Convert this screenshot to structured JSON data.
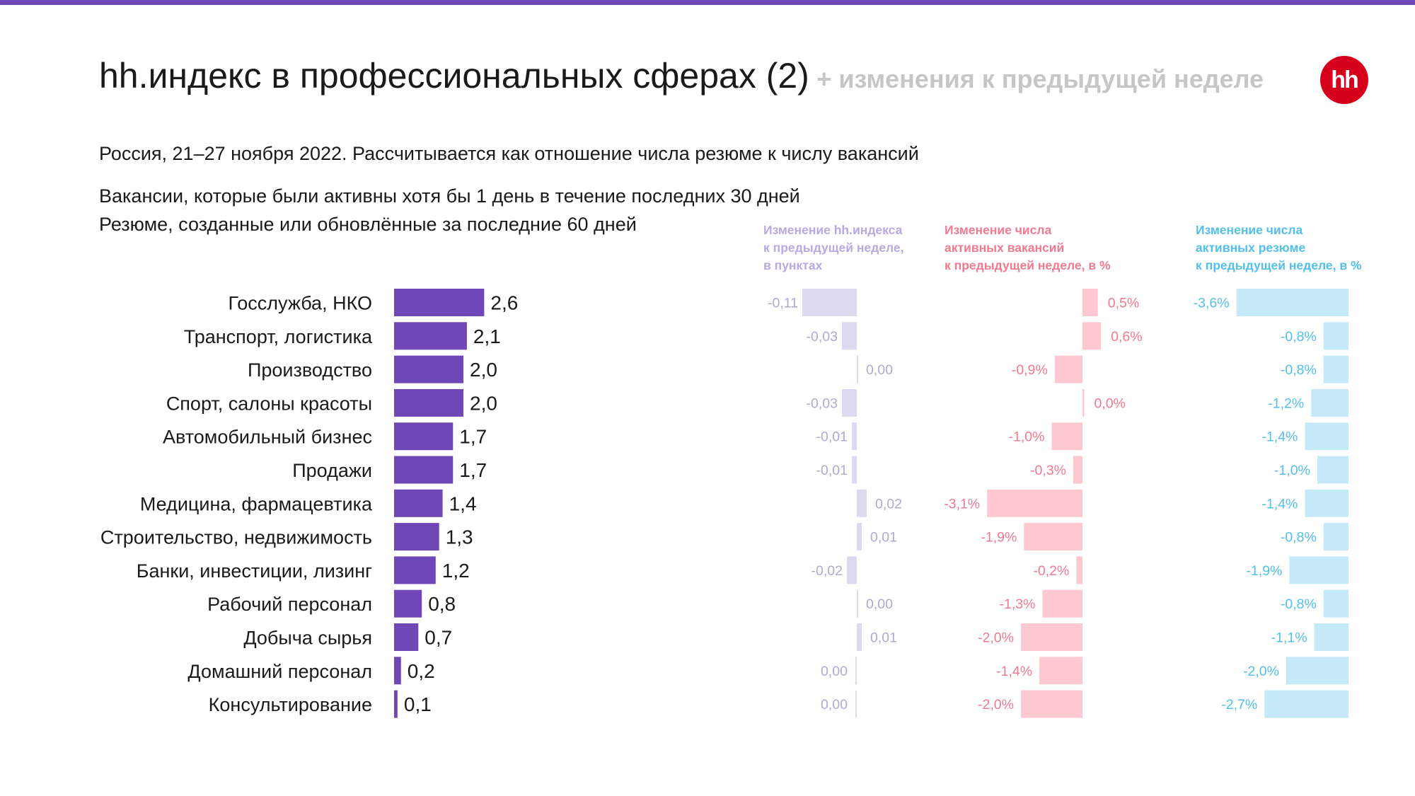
{
  "header": {
    "title": "hh.индекс в профессиональных сферах (2)",
    "subtitle": "+ изменения к предыдущей неделе",
    "logo_text": "hh"
  },
  "description": {
    "line1": "Россия, 21–27 ноября 2022. Рассчитывается как отношение числа резюме к числу вакансий",
    "line2": "Вакансии, которые были активны хотя бы 1 день в течение последних 30 дней",
    "line3": "Резюме, созданные или обновлённые за последние 60 дней"
  },
  "columns": {
    "index_change": "Изменение hh.индекса\nк предыдущей неделе,\nв пунктах",
    "vacancies_change": "Изменение числа\nактивных вакансий\nк предыдущей неделе, в %",
    "resumes_change": "Изменение числа\nактивных резюме\nк предыдущей неделе, в %"
  },
  "colors": {
    "accent_stripe": "#7047b6",
    "main_bar": "#7047b6",
    "logo_red": "#d6001c",
    "index_bar": "#ddd9ee",
    "index_text": "#b1a9ce",
    "index_header": "#b9a8e2",
    "vacancies_bar": "#fec8d0",
    "vacancies_text": "#f07a8f",
    "resumes_bar": "#c6e9fa",
    "resumes_text": "#52c0ea"
  },
  "chart_data": [
    {
      "type": "bar",
      "orientation": "horizontal",
      "categories": [
        "Госслужба, НКО",
        "Транспорт, логистика",
        "Производство",
        "Спорт, салоны красоты",
        "Автомобильный бизнес",
        "Продажи",
        "Медицина, фармацевтика",
        "Строительство, недвижимость",
        "Банки, инвестиции, лизинг",
        "Рабочий персонал",
        "Добыча сырья",
        "Домашний персонал",
        "Консультирование"
      ],
      "values": [
        2.6,
        2.1,
        2.0,
        2.0,
        1.7,
        1.7,
        1.4,
        1.3,
        1.2,
        0.8,
        0.7,
        0.2,
        0.1
      ],
      "labels": [
        "2,6",
        "2,1",
        "2,0",
        "2,0",
        "1,7",
        "1,7",
        "1,4",
        "1,3",
        "1,2",
        "0,8",
        "0,7",
        "0,2",
        "0,1"
      ]
    },
    {
      "type": "bar",
      "orientation": "horizontal",
      "values": [
        -0.11,
        -0.03,
        0.0,
        -0.03,
        -0.01,
        -0.01,
        0.02,
        0.01,
        -0.02,
        0.0,
        0.01,
        0.0,
        0.0
      ],
      "labels": [
        "-0,11",
        "-0,03",
        "0,00",
        "-0,03",
        "-0,01",
        "-0,01",
        "0,02",
        "0,01",
        "-0,02",
        "0,00",
        "0,01",
        "0,00",
        "0,00"
      ]
    },
    {
      "type": "bar",
      "orientation": "horizontal",
      "values": [
        0.5,
        0.6,
        -0.9,
        0.0,
        -1.0,
        -0.3,
        -3.1,
        -1.9,
        -0.2,
        -1.3,
        -2.0,
        -1.4,
        -2.0
      ],
      "labels": [
        "0,5%",
        "0,6%",
        "-0,9%",
        "0,0%",
        "-1,0%",
        "-0,3%",
        "-3,1%",
        "-1,9%",
        "-0,2%",
        "-1,3%",
        "-2,0%",
        "-1,4%",
        "-2,0%"
      ]
    },
    {
      "type": "bar",
      "orientation": "horizontal",
      "values": [
        -3.6,
        -0.8,
        -0.8,
        -1.2,
        -1.4,
        -1.0,
        -1.4,
        -0.8,
        -1.9,
        -0.8,
        -1.1,
        -2.0,
        -2.7
      ],
      "labels": [
        "-3,6%",
        "-0,8%",
        "-0,8%",
        "-1,2%",
        "-1,4%",
        "-1,0%",
        "-1,4%",
        "-0,8%",
        "-1,9%",
        "-0,8%",
        "-1,1%",
        "-2,0%",
        "-2,7%"
      ]
    }
  ]
}
